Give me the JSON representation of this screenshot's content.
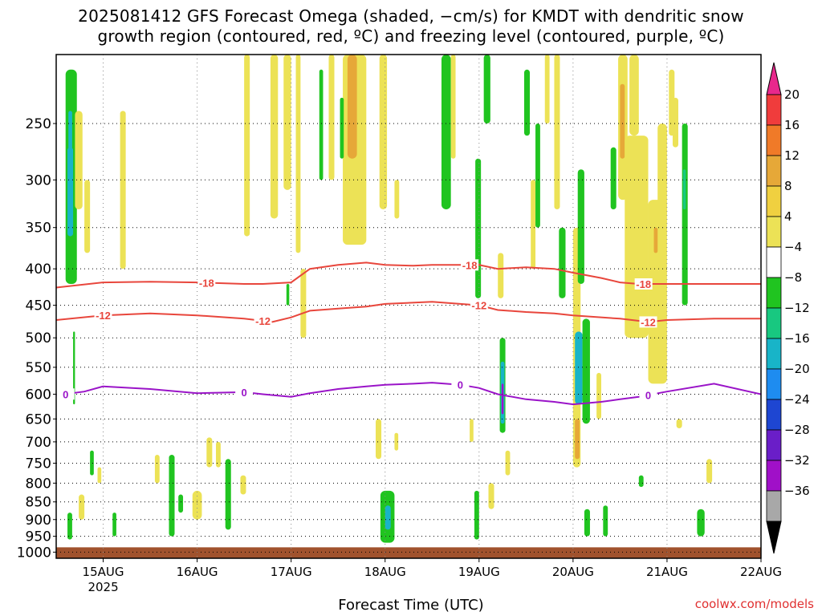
{
  "title_line1": "2025081412 GFS Forecast Omega (shaded, −cm/s) for KMDT with dendritic snow",
  "title_line2": "growth region (contoured, red, ºC) and freezing level (contoured, purple, ºC)",
  "credit": "coolwx.com/models",
  "chart_data": {
    "type": "heatmap",
    "title": "2025081412 GFS Forecast Omega (shaded, −cm/s) for KMDT with dendritic snow growth region (contoured, red, ºC) and freezing level (contoured, purple, ºC)",
    "xlabel": "Forecast Time (UTC)",
    "ylabel": "",
    "y_scale": "log-pressure",
    "y_reversed": true,
    "ylim": [
      1000,
      200
    ],
    "xlim": [
      "2025-08-14 12Z",
      "2025-08-22 00Z"
    ],
    "x_ticks": [
      {
        "t": 0.5,
        "label": "15AUG",
        "sub": "2025"
      },
      {
        "t": 1.5,
        "label": "16AUG",
        "sub": ""
      },
      {
        "t": 2.5,
        "label": "17AUG",
        "sub": ""
      },
      {
        "t": 3.5,
        "label": "18AUG",
        "sub": ""
      },
      {
        "t": 4.5,
        "label": "19AUG",
        "sub": ""
      },
      {
        "t": 5.5,
        "label": "20AUG",
        "sub": ""
      },
      {
        "t": 6.5,
        "label": "21AUG",
        "sub": ""
      },
      {
        "t": 7.5,
        "label": "22AUG",
        "sub": ""
      }
    ],
    "y_ticks": [
      250,
      300,
      350,
      400,
      450,
      500,
      550,
      600,
      650,
      700,
      750,
      800,
      850,
      900,
      950,
      1000
    ],
    "grid": true,
    "colorbar": {
      "labels": [
        "20",
        "16",
        "12",
        "8",
        "4",
        "−4",
        "−8",
        "−12",
        "−16",
        "−20",
        "−24",
        "−28",
        "−32",
        "−36"
      ],
      "colors": [
        "#f03c3c",
        "#f07a28",
        "#e6a838",
        "#f0d040",
        "#ece256",
        "#ffffff",
        "#20c420",
        "#18c880",
        "#18b4c8",
        "#1e8cf0",
        "#1e46d2",
        "#6a1ec8",
        "#a010c8",
        "#a8a8a8"
      ],
      "top_arrow_color": "#e8288c",
      "bottom_arrow_color": "#000000"
    },
    "omega_units": "-cm/s",
    "omega_cells": [
      {
        "t0": 0.1,
        "t1": 0.22,
        "p0": 210,
        "p1": 420,
        "v": -6
      },
      {
        "t0": 0.12,
        "t1": 0.18,
        "p0": 270,
        "p1": 360,
        "v": -12
      },
      {
        "t0": 0.13,
        "t1": 0.17,
        "p0": 240,
        "p1": 280,
        "v": -14
      },
      {
        "t0": 0.2,
        "t1": 0.28,
        "p0": 240,
        "p1": 330,
        "v": 5
      },
      {
        "t0": 0.3,
        "t1": 0.36,
        "p0": 300,
        "p1": 380,
        "v": 5
      },
      {
        "t0": 0.12,
        "t1": 0.17,
        "p0": 880,
        "p1": 960,
        "v": -6
      },
      {
        "t0": 0.24,
        "t1": 0.3,
        "p0": 830,
        "p1": 900,
        "v": 5
      },
      {
        "t0": 0.36,
        "t1": 0.4,
        "p0": 720,
        "p1": 780,
        "v": -6
      },
      {
        "t0": 0.44,
        "t1": 0.48,
        "p0": 760,
        "p1": 800,
        "v": 5
      },
      {
        "t0": 0.6,
        "t1": 0.64,
        "p0": 880,
        "p1": 950,
        "v": -6
      },
      {
        "t0": 0.18,
        "t1": 0.2,
        "p0": 490,
        "p1": 620,
        "v": -6
      },
      {
        "t0": 0.68,
        "t1": 0.74,
        "p0": 240,
        "p1": 400,
        "v": 5
      },
      {
        "t0": 1.05,
        "t1": 1.1,
        "p0": 730,
        "p1": 800,
        "v": 5
      },
      {
        "t0": 1.2,
        "t1": 1.26,
        "p0": 730,
        "p1": 950,
        "v": -6
      },
      {
        "t0": 1.3,
        "t1": 1.35,
        "p0": 830,
        "p1": 880,
        "v": -6
      },
      {
        "t0": 1.45,
        "t1": 1.55,
        "p0": 820,
        "p1": 900,
        "v": 5
      },
      {
        "t0": 1.6,
        "t1": 1.66,
        "p0": 690,
        "p1": 760,
        "v": 5
      },
      {
        "t0": 1.7,
        "t1": 1.75,
        "p0": 700,
        "p1": 760,
        "v": 5
      },
      {
        "t0": 1.8,
        "t1": 1.86,
        "p0": 740,
        "p1": 930,
        "v": -6
      },
      {
        "t0": 1.96,
        "t1": 2.02,
        "p0": 780,
        "p1": 830,
        "v": 5
      },
      {
        "t0": 2.0,
        "t1": 2.06,
        "p0": 200,
        "p1": 360,
        "v": 5
      },
      {
        "t0": 2.28,
        "t1": 2.36,
        "p0": 200,
        "p1": 340,
        "v": 5
      },
      {
        "t0": 2.42,
        "t1": 2.5,
        "p0": 200,
        "p1": 310,
        "v": 5
      },
      {
        "t0": 2.55,
        "t1": 2.6,
        "p0": 200,
        "p1": 380,
        "v": 5
      },
      {
        "t0": 2.6,
        "t1": 2.66,
        "p0": 400,
        "p1": 500,
        "v": 5
      },
      {
        "t0": 2.45,
        "t1": 2.48,
        "p0": 420,
        "p1": 450,
        "v": -6
      },
      {
        "t0": 2.8,
        "t1": 2.84,
        "p0": 210,
        "p1": 300,
        "v": -6
      },
      {
        "t0": 2.9,
        "t1": 2.96,
        "p0": 200,
        "p1": 300,
        "v": 5
      },
      {
        "t0": 3.05,
        "t1": 3.3,
        "p0": 200,
        "p1": 370,
        "v": 5
      },
      {
        "t0": 3.1,
        "t1": 3.2,
        "p0": 200,
        "p1": 280,
        "v": 10
      },
      {
        "t0": 3.02,
        "t1": 3.06,
        "p0": 230,
        "p1": 280,
        "v": -6
      },
      {
        "t0": 3.44,
        "t1": 3.52,
        "p0": 200,
        "p1": 330,
        "v": 5
      },
      {
        "t0": 3.6,
        "t1": 3.65,
        "p0": 300,
        "p1": 340,
        "v": 5
      },
      {
        "t0": 3.4,
        "t1": 3.46,
        "p0": 650,
        "p1": 740,
        "v": 5
      },
      {
        "t0": 3.45,
        "t1": 3.6,
        "p0": 820,
        "p1": 970,
        "v": -6
      },
      {
        "t0": 3.5,
        "t1": 3.56,
        "p0": 860,
        "p1": 930,
        "v": -12
      },
      {
        "t0": 3.6,
        "t1": 3.64,
        "p0": 680,
        "p1": 720,
        "v": 5
      },
      {
        "t0": 4.1,
        "t1": 4.2,
        "p0": 200,
        "p1": 330,
        "v": -6
      },
      {
        "t0": 4.2,
        "t1": 4.25,
        "p0": 200,
        "p1": 280,
        "v": 5
      },
      {
        "t0": 4.4,
        "t1": 4.44,
        "p0": 650,
        "p1": 700,
        "v": 5
      },
      {
        "t0": 4.45,
        "t1": 4.5,
        "p0": 820,
        "p1": 960,
        "v": -6
      },
      {
        "t0": 4.46,
        "t1": 4.52,
        "p0": 280,
        "p1": 440,
        "v": -6
      },
      {
        "t0": 4.55,
        "t1": 4.62,
        "p0": 200,
        "p1": 250,
        "v": -6
      },
      {
        "t0": 4.6,
        "t1": 4.66,
        "p0": 800,
        "p1": 870,
        "v": 5
      },
      {
        "t0": 4.72,
        "t1": 4.78,
        "p0": 500,
        "p1": 680,
        "v": -6
      },
      {
        "t0": 4.73,
        "t1": 4.77,
        "p0": 540,
        "p1": 660,
        "v": -14
      },
      {
        "t0": 4.74,
        "t1": 4.76,
        "p0": 580,
        "p1": 640,
        "v": -30
      },
      {
        "t0": 4.7,
        "t1": 4.76,
        "p0": 380,
        "p1": 440,
        "v": 5
      },
      {
        "t0": 4.78,
        "t1": 4.83,
        "p0": 720,
        "p1": 780,
        "v": 5
      },
      {
        "t0": 4.98,
        "t1": 5.04,
        "p0": 210,
        "p1": 260,
        "v": -6
      },
      {
        "t0": 5.05,
        "t1": 5.1,
        "p0": 300,
        "p1": 400,
        "v": 5
      },
      {
        "t0": 5.1,
        "t1": 5.15,
        "p0": 250,
        "p1": 350,
        "v": -6
      },
      {
        "t0": 5.2,
        "t1": 5.25,
        "p0": 200,
        "p1": 250,
        "v": 5
      },
      {
        "t0": 5.3,
        "t1": 5.36,
        "p0": 200,
        "p1": 330,
        "v": 5
      },
      {
        "t0": 5.35,
        "t1": 5.42,
        "p0": 350,
        "p1": 440,
        "v": -6
      },
      {
        "t0": 5.5,
        "t1": 5.58,
        "p0": 350,
        "p1": 470,
        "v": 5
      },
      {
        "t0": 5.5,
        "t1": 5.58,
        "p0": 460,
        "p1": 760,
        "v": 5
      },
      {
        "t0": 5.52,
        "t1": 5.6,
        "p0": 490,
        "p1": 620,
        "v": -12
      },
      {
        "t0": 5.52,
        "t1": 5.57,
        "p0": 650,
        "p1": 740,
        "v": 10
      },
      {
        "t0": 5.6,
        "t1": 5.68,
        "p0": 470,
        "p1": 660,
        "v": -6
      },
      {
        "t0": 5.62,
        "t1": 5.68,
        "p0": 870,
        "p1": 950,
        "v": -6
      },
      {
        "t0": 5.55,
        "t1": 5.62,
        "p0": 290,
        "p1": 420,
        "v": -6
      },
      {
        "t0": 5.75,
        "t1": 5.8,
        "p0": 560,
        "p1": 650,
        "v": 5
      },
      {
        "t0": 5.82,
        "t1": 5.87,
        "p0": 860,
        "p1": 950,
        "v": -6
      },
      {
        "t0": 5.9,
        "t1": 5.96,
        "p0": 270,
        "p1": 330,
        "v": -6
      },
      {
        "t0": 5.98,
        "t1": 6.08,
        "p0": 200,
        "p1": 320,
        "v": 5
      },
      {
        "t0": 6.0,
        "t1": 6.05,
        "p0": 220,
        "p1": 280,
        "v": 10
      },
      {
        "t0": 6.05,
        "t1": 6.3,
        "p0": 260,
        "p1": 500,
        "v": 5
      },
      {
        "t0": 6.1,
        "t1": 6.2,
        "p0": 200,
        "p1": 260,
        "v": 5
      },
      {
        "t0": 6.3,
        "t1": 6.5,
        "p0": 320,
        "p1": 580,
        "v": 5
      },
      {
        "t0": 6.36,
        "t1": 6.4,
        "p0": 350,
        "p1": 380,
        "v": 10
      },
      {
        "t0": 6.4,
        "t1": 6.5,
        "p0": 250,
        "p1": 340,
        "v": 5
      },
      {
        "t0": 6.52,
        "t1": 6.58,
        "p0": 210,
        "p1": 260,
        "v": 5
      },
      {
        "t0": 6.56,
        "t1": 6.62,
        "p0": 230,
        "p1": 270,
        "v": 5
      },
      {
        "t0": 6.66,
        "t1": 6.72,
        "p0": 250,
        "p1": 450,
        "v": -6
      },
      {
        "t0": 6.67,
        "t1": 6.7,
        "p0": 290,
        "p1": 330,
        "v": -10
      },
      {
        "t0": 6.2,
        "t1": 6.25,
        "p0": 780,
        "p1": 810,
        "v": -6
      },
      {
        "t0": 6.6,
        "t1": 6.66,
        "p0": 650,
        "p1": 670,
        "v": 5
      },
      {
        "t0": 6.82,
        "t1": 6.9,
        "p0": 870,
        "p1": 950,
        "v": -6
      },
      {
        "t0": 6.92,
        "t1": 6.98,
        "p0": 740,
        "p1": 800,
        "v": 5
      }
    ],
    "ground_level_hpa": 1000,
    "ground_color": "#a0522d",
    "series": [
      {
        "name": "",
        "color": "#e8463c",
        "contour_label": "-18",
        "x": [
          0,
          0.5,
          1.0,
          1.5,
          2.0,
          2.2,
          2.5,
          2.7,
          3.0,
          3.3,
          3.5,
          3.8,
          4.0,
          4.5,
          4.7,
          5.0,
          5.3,
          5.5,
          5.8,
          6.0,
          6.2,
          6.5,
          7.0,
          7.5
        ],
        "y": [
          425,
          418,
          417,
          418,
          420,
          420,
          418,
          400,
          395,
          392,
          395,
          396,
          395,
          395,
          400,
          398,
          400,
          405,
          412,
          418,
          420,
          420,
          420,
          420
        ]
      },
      {
        "name": "",
        "color": "#e8463c",
        "contour_label": "-12",
        "x": [
          0,
          0.5,
          1.0,
          1.5,
          2.0,
          2.3,
          2.5,
          2.7,
          3.0,
          3.3,
          3.5,
          4.0,
          4.3,
          4.5,
          4.7,
          5.0,
          5.3,
          5.5,
          6.0,
          6.3,
          6.5,
          7.0,
          7.5
        ],
        "y": [
          472,
          465,
          462,
          465,
          470,
          475,
          468,
          458,
          455,
          452,
          448,
          445,
          448,
          450,
          457,
          460,
          462,
          465,
          470,
          475,
          472,
          470,
          470
        ]
      },
      {
        "name": "",
        "color": "#9a14c8",
        "contour_label": "0",
        "x": [
          0,
          0.3,
          0.5,
          1.0,
          1.5,
          2.0,
          2.2,
          2.5,
          2.7,
          3.0,
          3.3,
          3.5,
          3.8,
          4.0,
          4.3,
          4.5,
          4.7,
          5.0,
          5.3,
          5.5,
          5.8,
          6.0,
          6.2,
          6.5,
          7.0,
          7.5
        ],
        "y": [
          602,
          595,
          585,
          590,
          598,
          596,
          600,
          605,
          598,
          590,
          585,
          582,
          580,
          578,
          582,
          588,
          600,
          610,
          615,
          620,
          615,
          610,
          605,
          595,
          580,
          600
        ]
      }
    ]
  }
}
